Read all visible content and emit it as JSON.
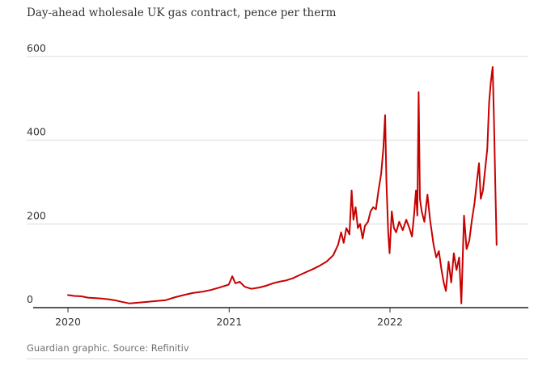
{
  "chart_data": {
    "type": "line",
    "title": "Day-ahead wholesale UK gas contract, pence per therm",
    "source": "Guardian graphic. Source: Refinitiv",
    "xlabel": "",
    "ylabel": "",
    "ylim": [
      0,
      600
    ],
    "y_ticks": [
      0,
      200,
      400,
      600
    ],
    "x_ticks": [
      {
        "label": "2020",
        "date": "2020-01-01"
      },
      {
        "label": "2021",
        "date": "2021-01-01"
      },
      {
        "label": "2022",
        "date": "2022-01-01"
      }
    ],
    "grid": true,
    "series": [
      {
        "color": "#c70000",
        "points": [
          [
            "2020-01-01",
            30
          ],
          [
            "2020-01-15",
            28
          ],
          [
            "2020-02-01",
            27
          ],
          [
            "2020-02-15",
            24
          ],
          [
            "2020-03-01",
            23
          ],
          [
            "2020-03-15",
            22
          ],
          [
            "2020-04-01",
            20
          ],
          [
            "2020-04-15",
            18
          ],
          [
            "2020-05-01",
            14
          ],
          [
            "2020-05-20",
            10
          ],
          [
            "2020-06-10",
            12
          ],
          [
            "2020-07-01",
            14
          ],
          [
            "2020-07-20",
            16
          ],
          [
            "2020-08-10",
            18
          ],
          [
            "2020-09-01",
            25
          ],
          [
            "2020-09-20",
            30
          ],
          [
            "2020-10-10",
            35
          ],
          [
            "2020-11-01",
            38
          ],
          [
            "2020-11-20",
            42
          ],
          [
            "2020-12-10",
            48
          ],
          [
            "2020-12-31",
            55
          ],
          [
            "2021-01-08",
            75
          ],
          [
            "2021-01-15",
            58
          ],
          [
            "2021-01-25",
            62
          ],
          [
            "2021-02-05",
            50
          ],
          [
            "2021-02-20",
            45
          ],
          [
            "2021-03-10",
            48
          ],
          [
            "2021-03-25",
            52
          ],
          [
            "2021-04-10",
            58
          ],
          [
            "2021-04-25",
            62
          ],
          [
            "2021-05-10",
            65
          ],
          [
            "2021-05-25",
            70
          ],
          [
            "2021-06-10",
            78
          ],
          [
            "2021-06-25",
            85
          ],
          [
            "2021-07-10",
            92
          ],
          [
            "2021-07-25",
            100
          ],
          [
            "2021-08-10",
            110
          ],
          [
            "2021-08-25",
            125
          ],
          [
            "2021-09-05",
            150
          ],
          [
            "2021-09-12",
            180
          ],
          [
            "2021-09-18",
            155
          ],
          [
            "2021-09-24",
            190
          ],
          [
            "2021-10-01",
            175
          ],
          [
            "2021-10-06",
            280
          ],
          [
            "2021-10-10",
            210
          ],
          [
            "2021-10-15",
            240
          ],
          [
            "2021-10-20",
            190
          ],
          [
            "2021-10-25",
            200
          ],
          [
            "2021-10-31",
            165
          ],
          [
            "2021-11-05",
            195
          ],
          [
            "2021-11-12",
            205
          ],
          [
            "2021-11-18",
            230
          ],
          [
            "2021-11-24",
            240
          ],
          [
            "2021-11-30",
            235
          ],
          [
            "2021-12-06",
            280
          ],
          [
            "2021-12-12",
            320
          ],
          [
            "2021-12-17",
            380
          ],
          [
            "2021-12-21",
            460
          ],
          [
            "2021-12-24",
            300
          ],
          [
            "2021-12-28",
            180
          ],
          [
            "2021-12-31",
            130
          ],
          [
            "2022-01-05",
            230
          ],
          [
            "2022-01-10",
            190
          ],
          [
            "2022-01-15",
            180
          ],
          [
            "2022-01-22",
            205
          ],
          [
            "2022-01-30",
            185
          ],
          [
            "2022-02-07",
            210
          ],
          [
            "2022-02-14",
            190
          ],
          [
            "2022-02-20",
            170
          ],
          [
            "2022-02-25",
            225
          ],
          [
            "2022-03-01",
            280
          ],
          [
            "2022-03-04",
            220
          ],
          [
            "2022-03-07",
            515
          ],
          [
            "2022-03-10",
            260
          ],
          [
            "2022-03-14",
            230
          ],
          [
            "2022-03-20",
            205
          ],
          [
            "2022-03-27",
            270
          ],
          [
            "2022-04-02",
            210
          ],
          [
            "2022-04-10",
            150
          ],
          [
            "2022-04-16",
            120
          ],
          [
            "2022-04-22",
            135
          ],
          [
            "2022-04-28",
            90
          ],
          [
            "2022-05-03",
            60
          ],
          [
            "2022-05-08",
            40
          ],
          [
            "2022-05-14",
            110
          ],
          [
            "2022-05-20",
            60
          ],
          [
            "2022-05-26",
            130
          ],
          [
            "2022-06-01",
            90
          ],
          [
            "2022-06-07",
            120
          ],
          [
            "2022-06-12",
            10
          ],
          [
            "2022-06-18",
            220
          ],
          [
            "2022-06-24",
            140
          ],
          [
            "2022-06-30",
            160
          ],
          [
            "2022-07-06",
            210
          ],
          [
            "2022-07-12",
            250
          ],
          [
            "2022-07-17",
            300
          ],
          [
            "2022-07-22",
            345
          ],
          [
            "2022-07-26",
            260
          ],
          [
            "2022-07-31",
            280
          ],
          [
            "2022-08-05",
            330
          ],
          [
            "2022-08-10",
            380
          ],
          [
            "2022-08-14",
            490
          ],
          [
            "2022-08-18",
            540
          ],
          [
            "2022-08-22",
            575
          ],
          [
            "2022-08-25",
            450
          ],
          [
            "2022-08-28",
            300
          ],
          [
            "2022-08-31",
            150
          ]
        ]
      }
    ]
  }
}
